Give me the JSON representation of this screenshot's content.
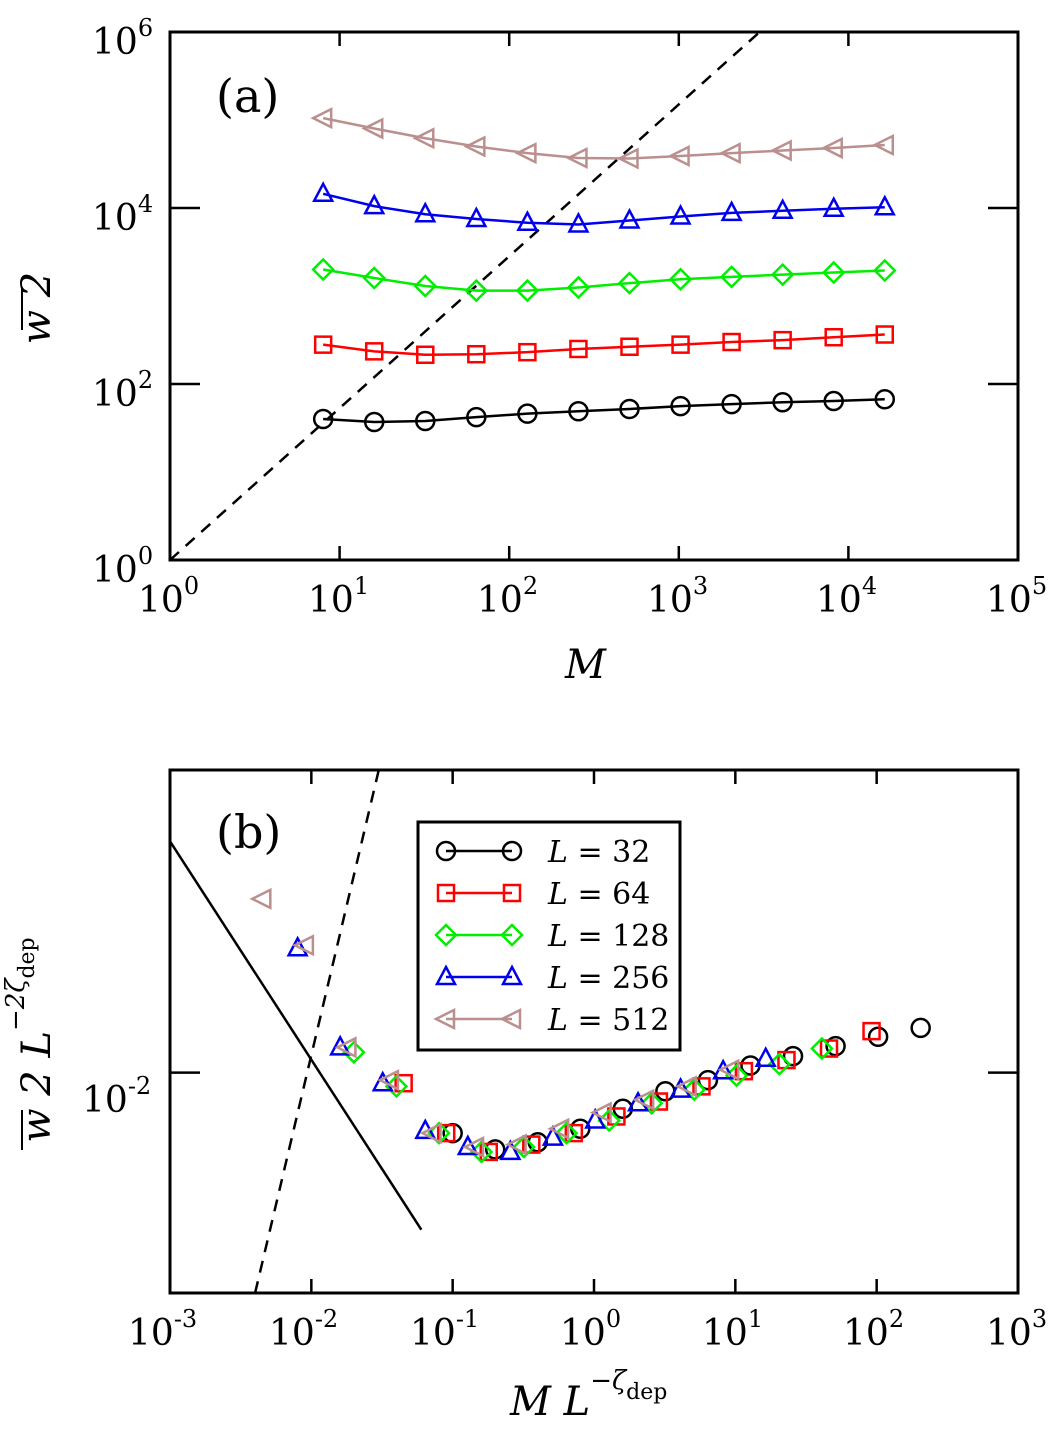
{
  "chart_data": [
    {
      "type": "line",
      "panel_label": "(a)",
      "xscale": "log",
      "yscale": "log",
      "xlim": [
        1,
        100000
      ],
      "ylim": [
        1,
        1000000
      ],
      "xlabel": "M",
      "ylabel": "w 2",
      "x_ticks": [
        {
          "base": "10",
          "exp": "0"
        },
        {
          "base": "10",
          "exp": "1"
        },
        {
          "base": "10",
          "exp": "2"
        },
        {
          "base": "10",
          "exp": "3"
        },
        {
          "base": "10",
          "exp": "4"
        },
        {
          "base": "10",
          "exp": "5"
        }
      ],
      "y_ticks": [
        {
          "base": "10",
          "exp": "0"
        },
        {
          "base": "10",
          "exp": "2"
        },
        {
          "base": "10",
          "exp": "4"
        },
        {
          "base": "10",
          "exp": "6"
        }
      ],
      "x": [
        8,
        16,
        32,
        64,
        128,
        256,
        512,
        1024,
        2048,
        4096,
        8192,
        16384
      ],
      "series": [
        {
          "name": "L = 32",
          "marker": "circle",
          "color": "#000000",
          "values": [
            40,
            37,
            38,
            42,
            46,
            49,
            52,
            56,
            59,
            62,
            64,
            67
          ]
        },
        {
          "name": "L = 64",
          "marker": "square",
          "color": "#ff0000",
          "values": [
            280,
            235,
            215,
            218,
            230,
            250,
            265,
            280,
            300,
            315,
            340,
            365
          ]
        },
        {
          "name": "L = 128",
          "marker": "diamond",
          "color": "#00ee00",
          "values": [
            2000,
            1600,
            1300,
            1150,
            1150,
            1250,
            1400,
            1550,
            1650,
            1750,
            1850,
            1950
          ]
        },
        {
          "name": "L = 256",
          "marker": "triangle-up",
          "color": "#0000ee",
          "values": [
            14500,
            10500,
            8500,
            7500,
            6800,
            6500,
            7200,
            8000,
            8800,
            9300,
            9800,
            10200
          ]
        },
        {
          "name": "L = 512",
          "marker": "triangle-left",
          "color": "#bc8f8f",
          "values": [
            105000,
            80000,
            62000,
            50000,
            42000,
            37000,
            36500,
            39000,
            42000,
            45000,
            48000,
            52000
          ]
        }
      ],
      "reference_lines": [
        {
          "style": "dashed",
          "from": [
            1,
            1
          ],
          "to": [
            3000,
            1000000
          ]
        }
      ]
    },
    {
      "type": "scatter",
      "panel_label": "(b)",
      "xscale": "log",
      "yscale": "log",
      "xlim": [
        0.001,
        1000
      ],
      "ylim": [
        0.0022,
        0.08
      ],
      "xlabel": "M L",
      "xlabel_exponent": "−ζ",
      "xlabel_exponent_sub": "dep",
      "ylabel": "w 2 L",
      "ylabel_exponent": "−2ζ",
      "ylabel_exponent_sub": "dep",
      "x_ticks": [
        {
          "base": "10",
          "exp": "-3"
        },
        {
          "base": "10",
          "exp": "-2"
        },
        {
          "base": "10",
          "exp": "-1"
        },
        {
          "base": "10",
          "exp": "0"
        },
        {
          "base": "10",
          "exp": "1"
        },
        {
          "base": "10",
          "exp": "2"
        },
        {
          "base": "10",
          "exp": "3"
        }
      ],
      "y_ticks": [
        {
          "value": 0.01,
          "base": "10",
          "exp": "-2"
        }
      ],
      "series": [
        {
          "name": "L = 32",
          "marker": "circle",
          "color": "#000000",
          "x": [
            0.1,
            0.2,
            0.4,
            0.8,
            1.6,
            3.2,
            6.4,
            12.8,
            25.6,
            51.2,
            102.4,
            204.8
          ],
          "values": [
            0.0066,
            0.0059,
            0.0062,
            0.0068,
            0.0078,
            0.0088,
            0.0095,
            0.0105,
            0.0112,
            0.012,
            0.0128,
            0.0136
          ]
        },
        {
          "name": "L = 64",
          "marker": "square",
          "color": "#ff0000",
          "x": [
            0.045,
            0.09,
            0.18,
            0.36,
            0.72,
            1.44,
            2.88,
            5.76,
            11.5,
            23,
            46,
            92
          ],
          "values": [
            0.0093,
            0.0066,
            0.0058,
            0.0061,
            0.0066,
            0.0074,
            0.0082,
            0.0091,
            0.0101,
            0.0109,
            0.0118,
            0.0133
          ]
        },
        {
          "name": "L = 128",
          "marker": "diamond",
          "color": "#00ee00",
          "x": [
            0.02,
            0.04,
            0.08,
            0.16,
            0.32,
            0.64,
            1.28,
            2.56,
            5.12,
            10.2,
            20.5,
            41
          ],
          "values": [
            0.0115,
            0.0091,
            0.0066,
            0.0058,
            0.006,
            0.0066,
            0.0072,
            0.0081,
            0.0089,
            0.0098,
            0.0106,
            0.0118
          ]
        },
        {
          "name": "L = 256",
          "marker": "triangle-up",
          "color": "#0000ee",
          "x": [
            0.008,
            0.016,
            0.032,
            0.064,
            0.128,
            0.256,
            0.512,
            1.02,
            2.05,
            4.1,
            8.2,
            16.4
          ],
          "values": [
            0.0235,
            0.0119,
            0.0093,
            0.0067,
            0.006,
            0.0058,
            0.0064,
            0.0072,
            0.0081,
            0.0089,
            0.0101,
            0.011
          ]
        },
        {
          "name": "L = 512",
          "marker": "triangle-left",
          "color": "#bc8f8f",
          "x": [
            0.0045,
            0.009,
            0.018,
            0.036,
            0.072,
            0.144,
            0.288,
            0.576,
            1.15,
            2.3,
            4.6,
            9.2
          ],
          "values": [
            0.033,
            0.024,
            0.0119,
            0.0095,
            0.0066,
            0.006,
            0.0061,
            0.0068,
            0.0076,
            0.0083,
            0.0091,
            0.0102
          ]
        }
      ],
      "reference_lines": [
        {
          "style": "solid",
          "from": [
            0.001,
            0.049
          ],
          "to": [
            0.06,
            0.0034
          ]
        },
        {
          "style": "dashed",
          "from": [
            0.004,
            0.0022
          ],
          "to": [
            0.03,
            0.08
          ]
        }
      ],
      "legend": {
        "position": "top-right",
        "entries": [
          {
            "var": "L",
            "eq": " = 32"
          },
          {
            "var": "L",
            "eq": " = 64"
          },
          {
            "var": "L",
            "eq": " = 128"
          },
          {
            "var": "L",
            "eq": " = 256"
          },
          {
            "var": "L",
            "eq": " = 512"
          }
        ]
      }
    }
  ]
}
